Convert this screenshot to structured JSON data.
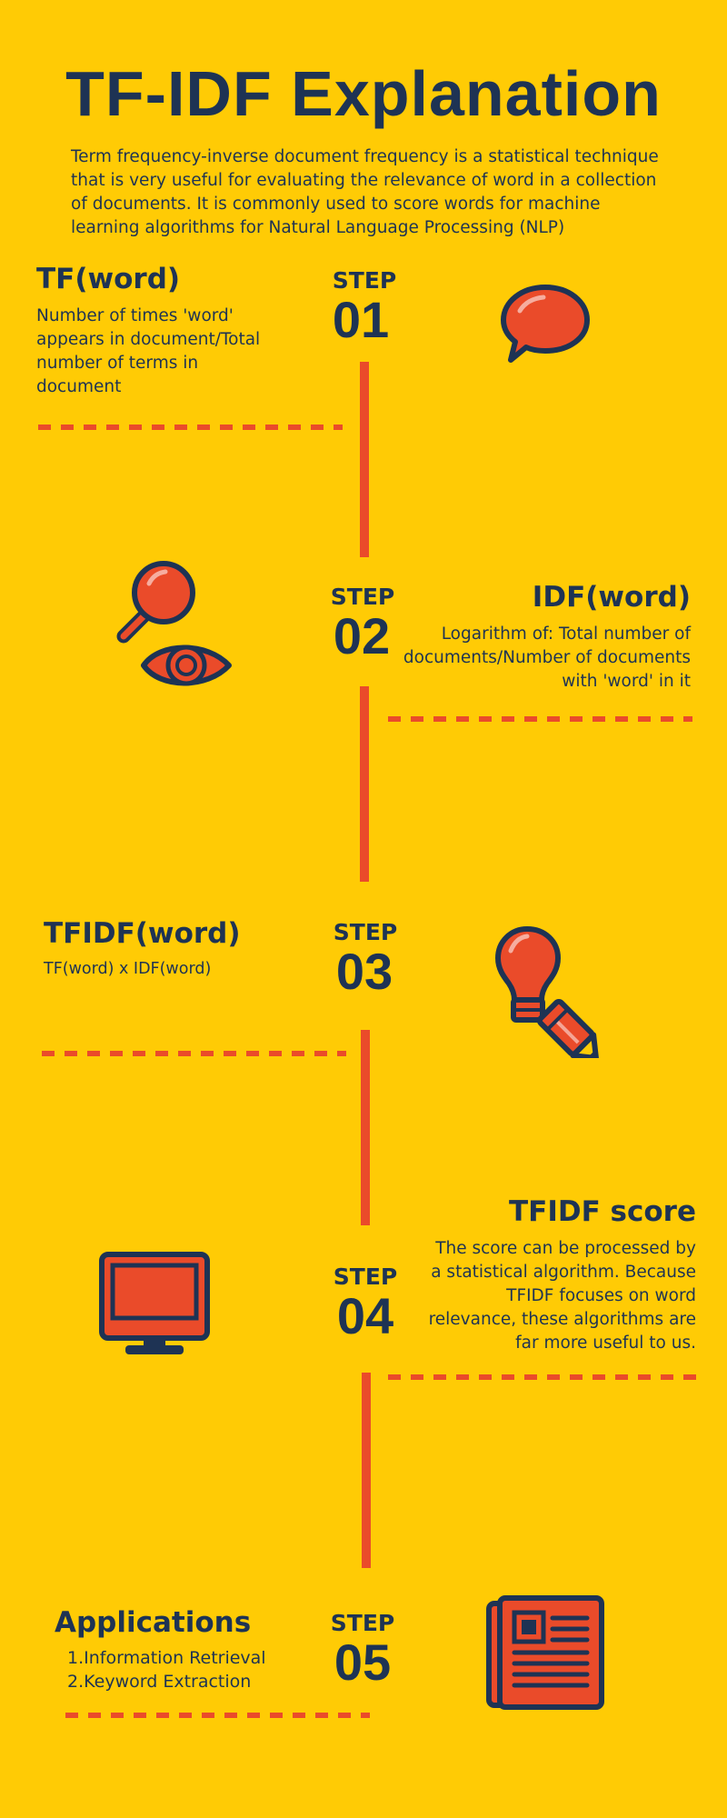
{
  "title": "TF-IDF Explanation",
  "intro": "Term frequency-inverse document frequency is a statistical technique that is very useful for evaluating the relevance of word in a collection of documents. It is commonly used to score words for machine learning algorithms for Natural Language Processing (NLP)",
  "colors": {
    "background": "#FFCB05",
    "navy": "#1E3354",
    "accent": "#EA4B2A"
  },
  "steps": [
    {
      "label": "STEP",
      "number": "01",
      "title": "TF(word)",
      "body": "Number of times 'word' appears in document/Total number of terms in document",
      "icon": "speech-bubble-icon"
    },
    {
      "label": "STEP",
      "number": "02",
      "title": "IDF(word)",
      "body": "Logarithm of: Total number of documents/Number of documents with 'word' in it",
      "icon": "magnifier-eye-icon"
    },
    {
      "label": "STEP",
      "number": "03",
      "title": "TFIDF(word)",
      "body": "TF(word) x IDF(word)",
      "icon": "lightbulb-pencil-icon"
    },
    {
      "label": "STEP",
      "number": "04",
      "title": "TFIDF score",
      "body": "The score can be processed by a statistical algorithm. Because TFIDF focuses on word relevance, these algorithms are far more useful to us.",
      "icon": "monitor-icon"
    },
    {
      "label": "STEP",
      "number": "05",
      "title": "Applications",
      "items": [
        "1.Information Retrieval",
        "2.Keyword Extraction"
      ],
      "icon": "newspaper-icon"
    }
  ]
}
